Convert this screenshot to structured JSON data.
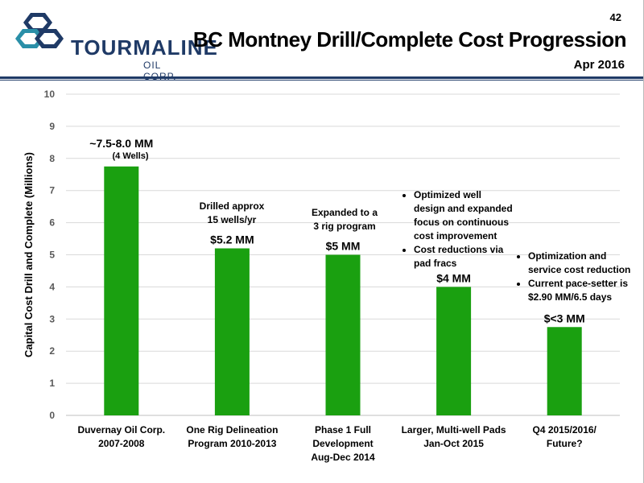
{
  "header": {
    "logo_word": "TOURMALINE",
    "logo_sub": "OIL CORP.",
    "page_number": "42",
    "title": "BC Montney Drill/Complete Cost Progression",
    "subtitle": "Apr 2016"
  },
  "colors": {
    "bar": "#1aa010",
    "brand": "#1f3a66",
    "logo_accent": "#2a8fa8"
  },
  "chart_data": {
    "type": "bar",
    "ylabel": "Capital Cost Drill and Complete (Millions)",
    "ylim": [
      0,
      10
    ],
    "yticks": [
      0,
      1,
      2,
      3,
      4,
      5,
      6,
      7,
      8,
      9,
      10
    ],
    "grid": true,
    "categories": [
      [
        "Duvernay Oil Corp.",
        "2007-2008"
      ],
      [
        "One Rig Delineation",
        "Program 2010-2013"
      ],
      [
        "Phase 1 Full",
        "Development",
        "Aug-Dec 2014"
      ],
      [
        "Larger, Multi-well Pads",
        "Jan-Oct 2015"
      ],
      [
        "Q4 2015/2016/",
        "Future?"
      ]
    ],
    "values": [
      7.75,
      5.2,
      5.0,
      4.0,
      2.75
    ],
    "value_labels": [
      "~7.5-8.0 MM",
      "$5.2 MM",
      "$5 MM",
      "$4 MM",
      "$<3 MM"
    ]
  },
  "annotations": {
    "bar1_note": "(4 Wells)",
    "bar2_note": [
      "Drilled approx",
      "15 wells/yr"
    ],
    "bar3_note": [
      "Expanded to a",
      "3 rig program"
    ],
    "bar4_bullets": [
      [
        "Optimized well",
        "design and expanded",
        "focus on continuous",
        "cost improvement"
      ],
      [
        "Cost reductions via",
        "pad fracs"
      ]
    ],
    "bar5_bullets": [
      [
        "Optimization and",
        "service cost reduction"
      ],
      [
        "Current pace-setter is",
        "$2.90 MM/6.5 days"
      ]
    ]
  }
}
